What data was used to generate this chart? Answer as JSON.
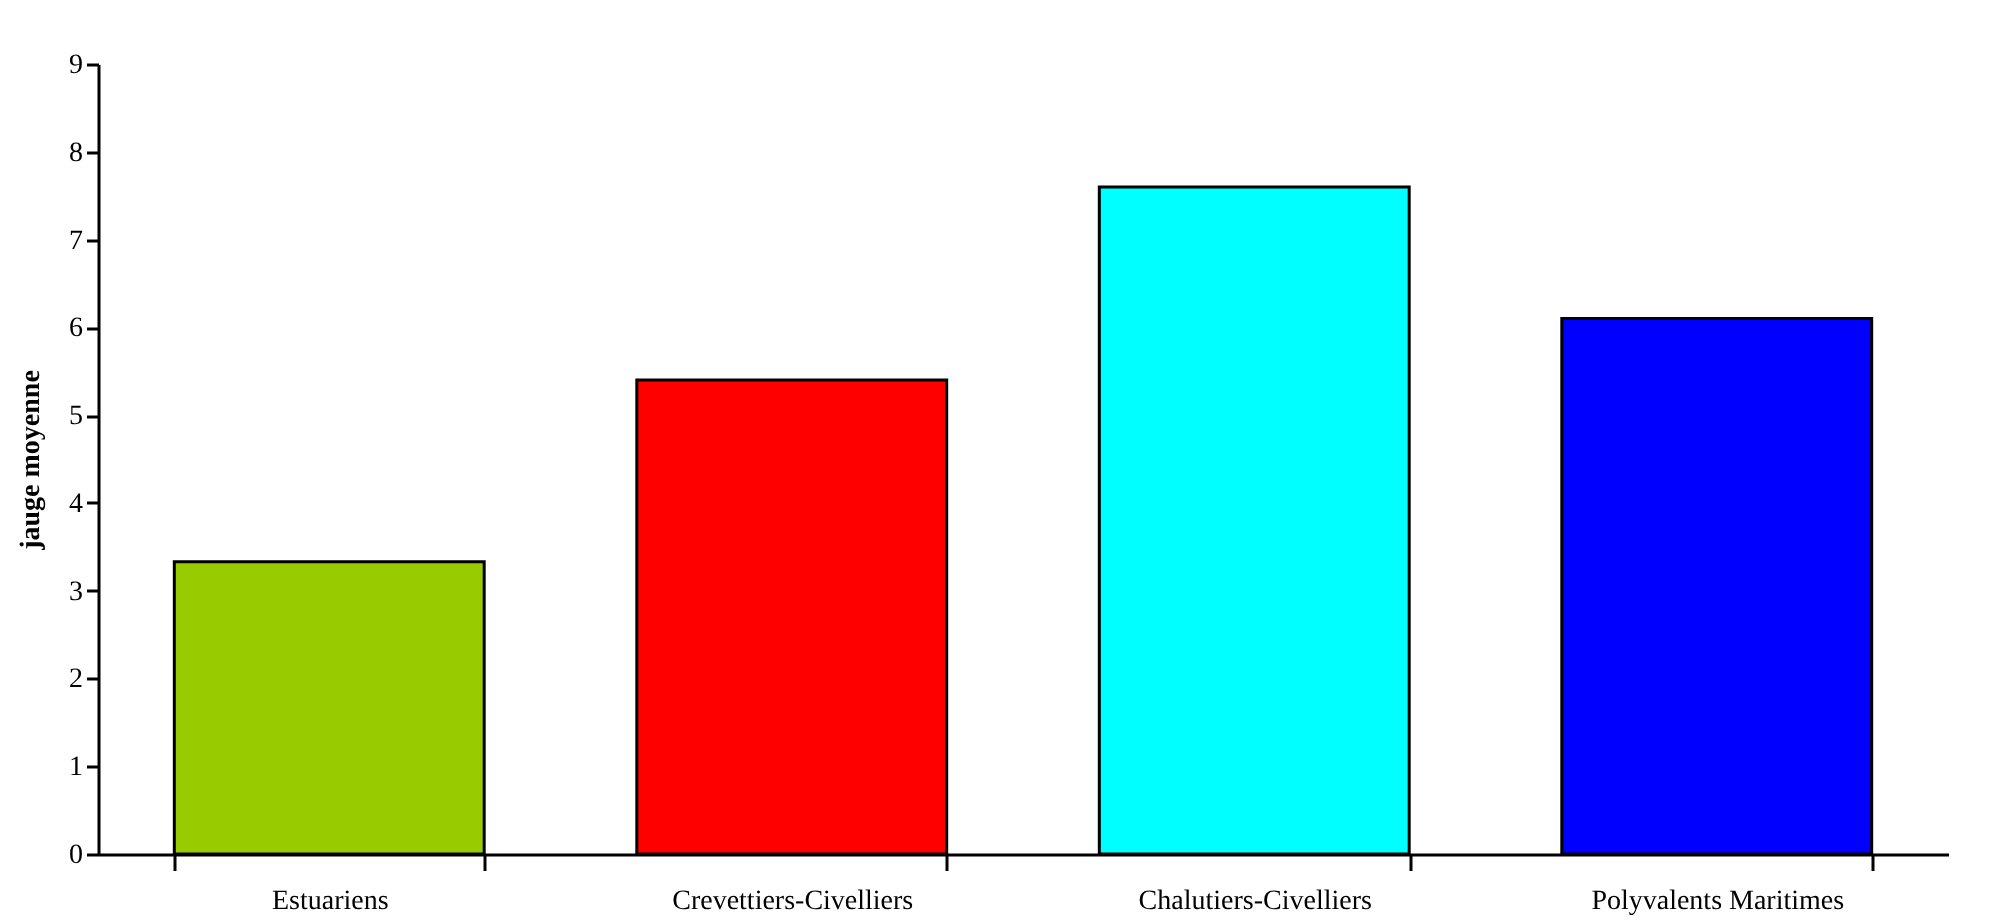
{
  "chart_data": {
    "type": "bar",
    "ylabel": "jauge moyenne",
    "categories": [
      "Estuariens",
      "Crevettiers-Civelliers",
      "Chalutiers-Civelliers",
      "Polyvalents Maritimes"
    ],
    "values": [
      3.33,
      5.4,
      7.6,
      6.1
    ],
    "colors": [
      "#99cc00",
      "#ff0000",
      "#00ffff",
      "#0000ff"
    ],
    "ylim": [
      0,
      9
    ],
    "yticks": [
      0,
      1,
      2,
      3,
      4,
      5,
      6,
      7,
      8,
      9
    ],
    "grid": false,
    "legend": false
  }
}
